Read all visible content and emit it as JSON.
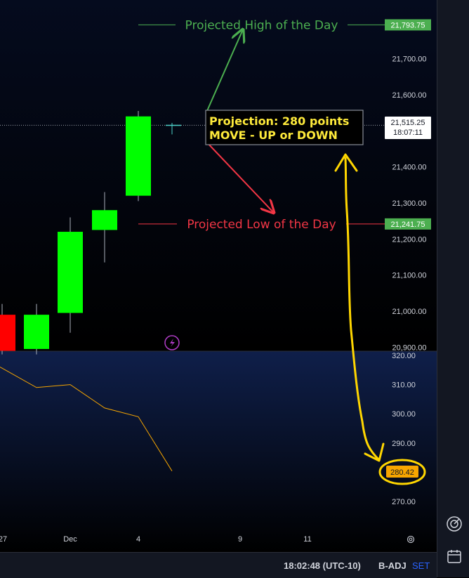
{
  "chart_data": [
    {
      "type": "candlestick",
      "x_tick_labels": [
        "27",
        "Dec",
        "4",
        "9",
        "11"
      ],
      "y_ticks": [
        21700,
        21600,
        21400,
        21300,
        21200,
        21100,
        21000,
        20900
      ],
      "y_tick_labels": [
        "21,700.00",
        "21,600.00",
        "21,400.00",
        "21,300.00",
        "21,200.00",
        "21,100.00",
        "21,000.00",
        "20,900.00"
      ],
      "ylim": [
        20900,
        21830
      ],
      "candles": [
        {
          "open": 20990,
          "high": 21020,
          "low": 20880,
          "close": 20890,
          "color": "#ff0000"
        },
        {
          "open": 20895,
          "high": 21020,
          "low": 20880,
          "close": 20990,
          "color": "#00ff00"
        },
        {
          "open": 20995,
          "high": 21260,
          "low": 20940,
          "close": 21220,
          "color": "#00ff00"
        },
        {
          "open": 21225,
          "high": 21330,
          "low": 21135,
          "close": 21280,
          "color": "#00ff00"
        },
        {
          "open": 21320,
          "high": 21555,
          "low": 21305,
          "close": 21540,
          "color": "#00ff00"
        },
        {
          "open": 21512,
          "high": 21522,
          "low": 21490,
          "close": 21515,
          "color": "#4dd0c8"
        }
      ],
      "current_price": {
        "value": 21515.25,
        "label": "21,515.25",
        "countdown": "18:07:11"
      },
      "levels": [
        {
          "value": 21793.75,
          "label": "21,793.75",
          "text": "Projected High of the Day",
          "color": "#4caf50"
        },
        {
          "value": 21241.75,
          "label": "21,241.75",
          "text": "Projected Low of the Day",
          "color": "#f23645"
        }
      ],
      "annotation": {
        "line1": "Projection: 280 points",
        "line2": "MOVE - UP or DOWN",
        "color": "#ffeb3b"
      }
    },
    {
      "type": "line",
      "values": [
        316,
        309,
        310,
        302,
        299,
        280.42
      ],
      "y_ticks": [
        320,
        310,
        300,
        290,
        270
      ],
      "y_tick_labels": [
        "320.00",
        "310.00",
        "300.00",
        "290.00",
        "270.00"
      ],
      "ylim": [
        263,
        323
      ],
      "last_value_label": "280.42",
      "color": "#f7a600"
    }
  ],
  "status_bar": {
    "time": "18:02:48 (UTC-10)",
    "adjust": "B-ADJ",
    "session": "SET"
  },
  "colors": {
    "up": "#00ff00",
    "down": "#ff0000",
    "accent_yellow": "#ffd600"
  },
  "icons": [
    "flash-icon",
    "settings-icon",
    "target-icon",
    "calendar-icon"
  ]
}
